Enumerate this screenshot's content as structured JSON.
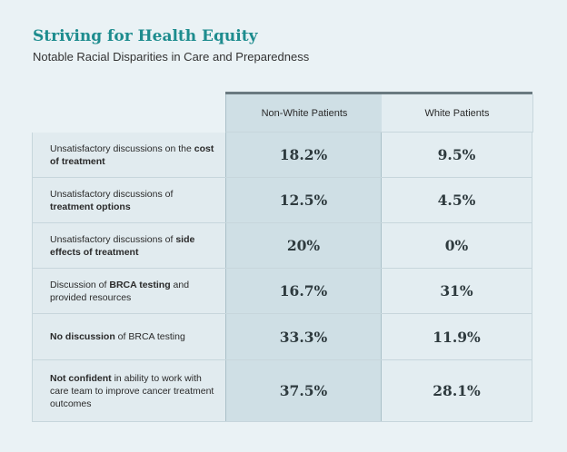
{
  "title": "Striving for Health Equity",
  "subtitle": "Notable Racial Disparities in Care and Preparedness",
  "chart_data": {
    "type": "table",
    "columns": [
      "Non-White Patients",
      "White Patients"
    ],
    "rows": [
      {
        "label_parts": [
          {
            "text": "Unsatisfactory discussions on the ",
            "bold": false
          },
          {
            "text": "cost of treatment",
            "bold": true
          }
        ],
        "values": [
          "18.2%",
          "9.5%"
        ]
      },
      {
        "label_parts": [
          {
            "text": "Unsatisfactory discussions of ",
            "bold": false
          },
          {
            "text": "treatment options",
            "bold": true
          }
        ],
        "values": [
          "12.5%",
          "4.5%"
        ]
      },
      {
        "label_parts": [
          {
            "text": "Unsatisfactory discussions of ",
            "bold": false
          },
          {
            "text": "side effects of treatment",
            "bold": true
          }
        ],
        "values": [
          "20%",
          "0%"
        ]
      },
      {
        "label_parts": [
          {
            "text": "Discussion of ",
            "bold": false
          },
          {
            "text": "BRCA testing",
            "bold": true
          },
          {
            "text": " and provided resources",
            "bold": false
          }
        ],
        "values": [
          "16.7%",
          "31%"
        ]
      },
      {
        "label_parts": [
          {
            "text": "No discussion",
            "bold": true
          },
          {
            "text": " of BRCA testing",
            "bold": false
          }
        ],
        "values": [
          "33.3%",
          "11.9%"
        ]
      },
      {
        "label_parts": [
          {
            "text": "Not confident",
            "bold": true
          },
          {
            "text": " in ability to work with care team to improve cancer treatment outcomes",
            "bold": false
          }
        ],
        "values": [
          "37.5%",
          "28.1%"
        ]
      }
    ]
  }
}
